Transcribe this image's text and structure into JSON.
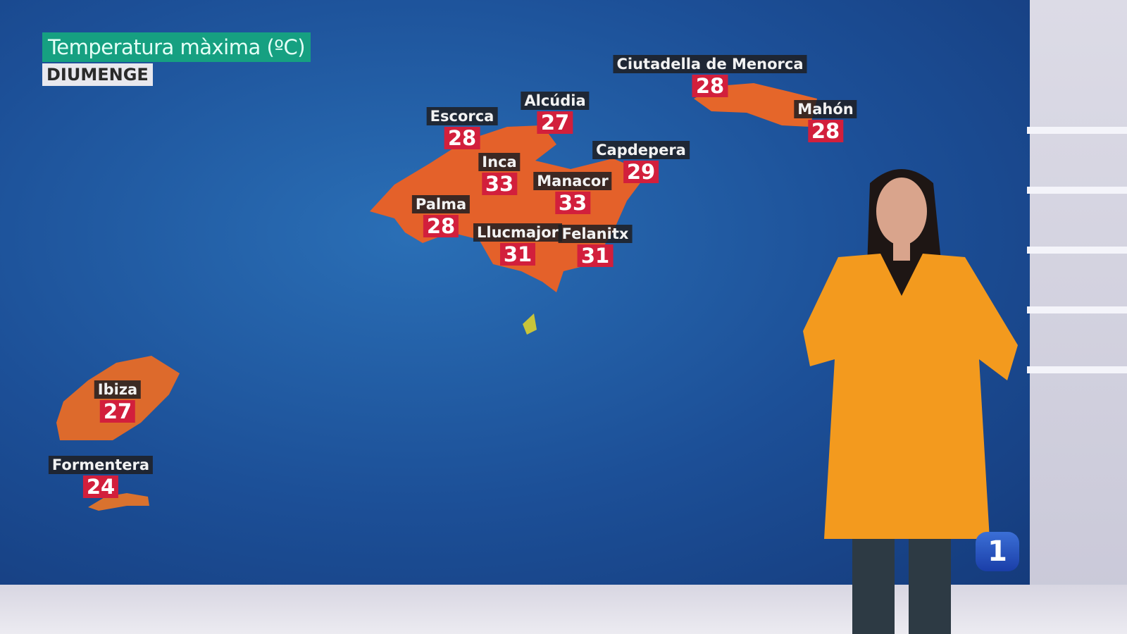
{
  "header": {
    "title": "Temperatura màxima (ºC)",
    "day": "DIUMENGE"
  },
  "cities": [
    {
      "name": "Ciutadella de Menorca",
      "temp": "28"
    },
    {
      "name": "Mahón",
      "temp": "28"
    },
    {
      "name": "Escorca",
      "temp": "28"
    },
    {
      "name": "Alcúdia",
      "temp": "27"
    },
    {
      "name": "Capdepera",
      "temp": "29"
    },
    {
      "name": "Inca",
      "temp": "33"
    },
    {
      "name": "Manacor",
      "temp": "33"
    },
    {
      "name": "Palma",
      "temp": "28"
    },
    {
      "name": "Llucmajor",
      "temp": "31"
    },
    {
      "name": "Felanitx",
      "temp": "31"
    },
    {
      "name": "Ibiza",
      "temp": "27"
    },
    {
      "name": "Formentera",
      "temp": "24"
    }
  ],
  "logo": {
    "text": "1"
  },
  "colors": {
    "sea": "#1c4f97",
    "land": "#e2662a",
    "temp_badge": "#d21f3c",
    "title_bg": "#16a081"
  }
}
